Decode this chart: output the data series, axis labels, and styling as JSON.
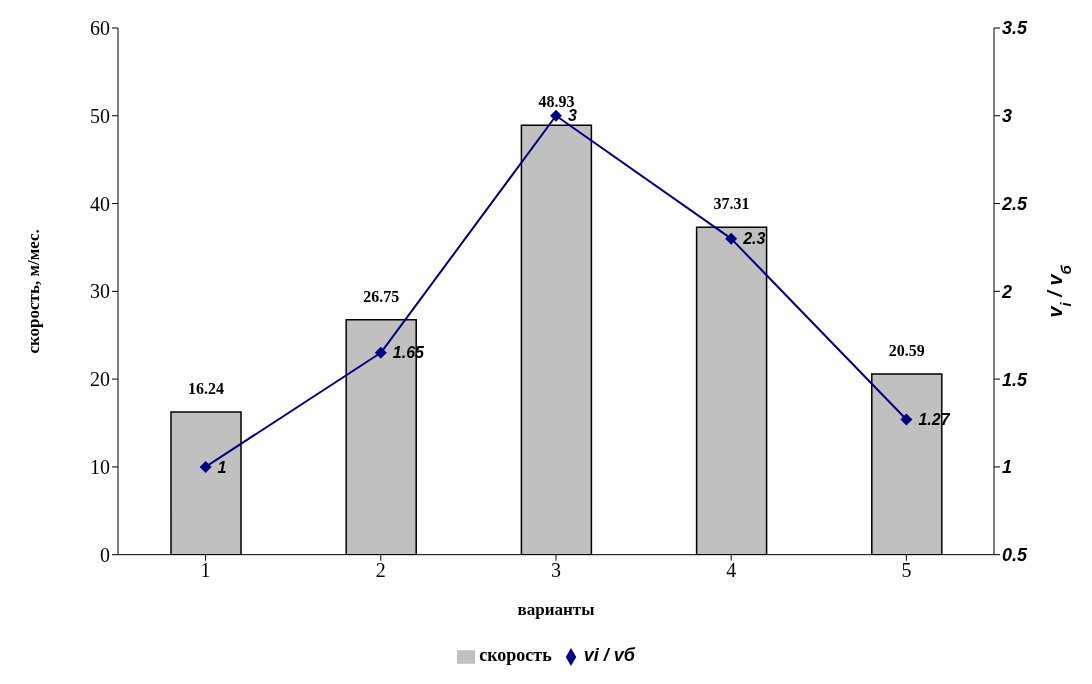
{
  "chart_data": {
    "type": "bar",
    "categories": [
      "1",
      "2",
      "3",
      "4",
      "5"
    ],
    "xlabel": "варианты",
    "ylabel": "скорость, м/мес.",
    "y2label": "v$_{i}$ / v$_{б}$",
    "series": [
      {
        "name": "скорость",
        "color": "#c0c0c0",
        "values": [
          16.24,
          26.75,
          48.93,
          37.31,
          20.59
        ]
      },
      {
        "name": "vi / vб",
        "type": "line",
        "axis": "y2",
        "color": "#000080",
        "values": [
          1,
          1.65,
          3,
          2.3,
          1.27
        ]
      }
    ],
    "ylim": [
      0,
      60
    ],
    "yticks": [
      0,
      10,
      20,
      30,
      40,
      50,
      60
    ],
    "y2lim": [
      0.5,
      3.5
    ],
    "y2ticks": [
      0.5,
      1,
      1.5,
      2,
      2.5,
      3,
      3.5
    ],
    "data_labels": true,
    "marker": "diamond",
    "legend": "bottom",
    "grid": false
  }
}
